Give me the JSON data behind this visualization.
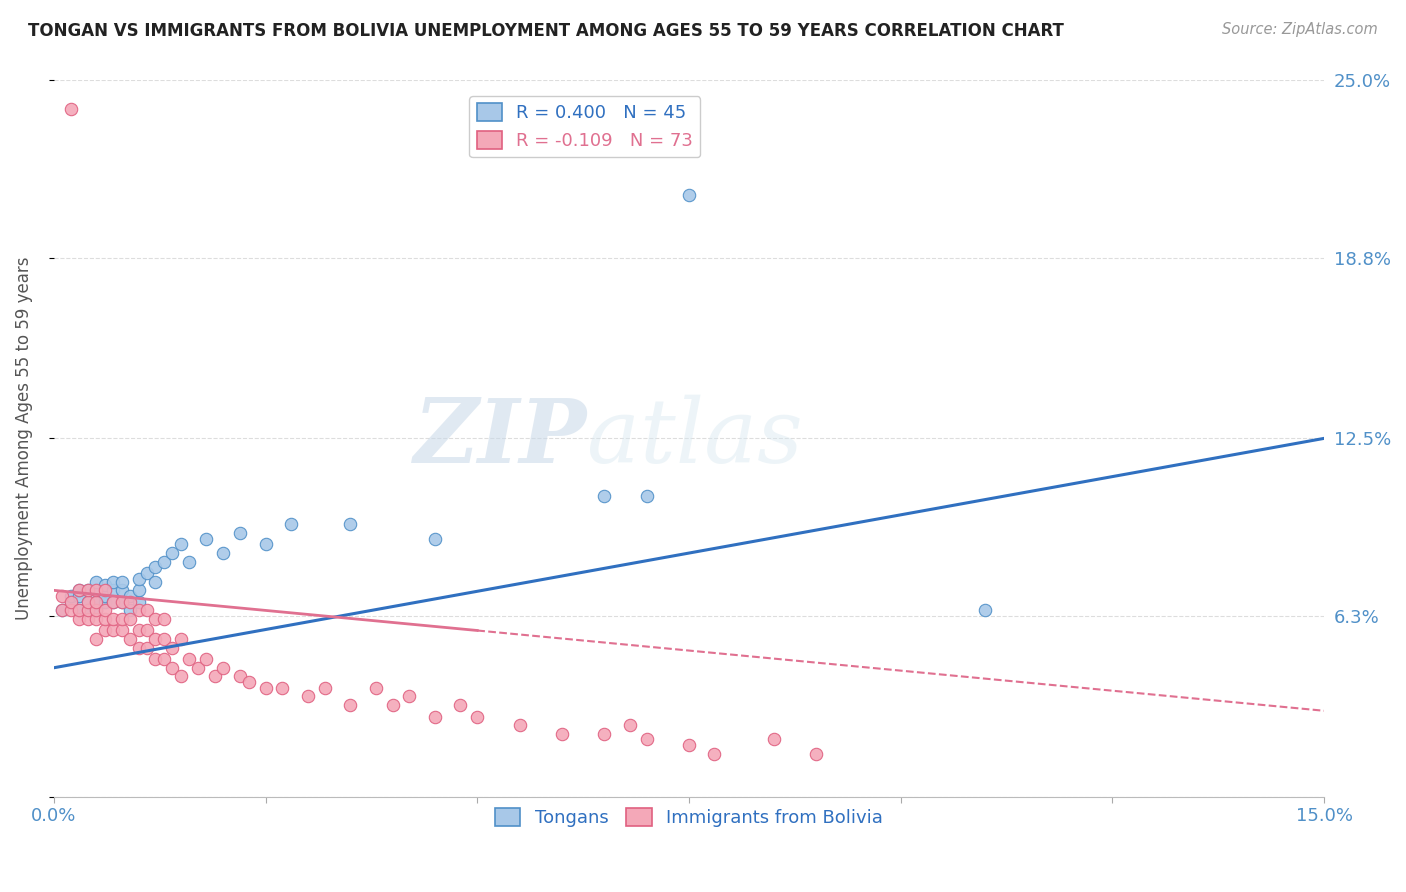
{
  "title": "TONGAN VS IMMIGRANTS FROM BOLIVIA UNEMPLOYMENT AMONG AGES 55 TO 59 YEARS CORRELATION CHART",
  "source": "Source: ZipAtlas.com",
  "ylabel": "Unemployment Among Ages 55 to 59 years",
  "xmin": 0.0,
  "xmax": 0.15,
  "ymin": 0.0,
  "ymax": 0.25,
  "yticks": [
    0.0,
    0.063,
    0.125,
    0.188,
    0.25
  ],
  "ytick_labels": [
    "",
    "6.3%",
    "12.5%",
    "18.8%",
    "25.0%"
  ],
  "watermark_zip": "ZIP",
  "watermark_atlas": "atlas",
  "blue_color": "#A8C8E8",
  "pink_color": "#F4A8B8",
  "blue_edge_color": "#5090C8",
  "pink_edge_color": "#E06080",
  "blue_line_color": "#3070C0",
  "pink_line_color": "#E07090",
  "legend_blue_label": "R = 0.400   N = 45",
  "legend_pink_label": "R = -0.109   N = 73",
  "legend_tongan": "Tongans",
  "legend_bolivia": "Immigrants from Bolivia",
  "blue_line_y0": 0.045,
  "blue_line_y1": 0.125,
  "pink_line_solid_x0": 0.0,
  "pink_line_solid_x1": 0.05,
  "pink_line_y0": 0.072,
  "pink_line_y1": 0.03,
  "blue_points_x": [
    0.001,
    0.002,
    0.002,
    0.003,
    0.003,
    0.003,
    0.004,
    0.004,
    0.004,
    0.005,
    0.005,
    0.005,
    0.005,
    0.006,
    0.006,
    0.006,
    0.007,
    0.007,
    0.007,
    0.008,
    0.008,
    0.008,
    0.009,
    0.009,
    0.01,
    0.01,
    0.01,
    0.011,
    0.012,
    0.012,
    0.013,
    0.014,
    0.015,
    0.016,
    0.018,
    0.02,
    0.022,
    0.025,
    0.028,
    0.035,
    0.045,
    0.065,
    0.07,
    0.075,
    0.11
  ],
  "blue_points_y": [
    0.065,
    0.068,
    0.07,
    0.065,
    0.07,
    0.072,
    0.065,
    0.068,
    0.072,
    0.065,
    0.068,
    0.072,
    0.075,
    0.068,
    0.07,
    0.074,
    0.068,
    0.072,
    0.075,
    0.068,
    0.072,
    0.075,
    0.065,
    0.07,
    0.068,
    0.072,
    0.076,
    0.078,
    0.075,
    0.08,
    0.082,
    0.085,
    0.088,
    0.082,
    0.09,
    0.085,
    0.092,
    0.088,
    0.095,
    0.095,
    0.09,
    0.105,
    0.105,
    0.21,
    0.065
  ],
  "pink_points_x": [
    0.001,
    0.001,
    0.002,
    0.002,
    0.003,
    0.003,
    0.003,
    0.004,
    0.004,
    0.004,
    0.004,
    0.005,
    0.005,
    0.005,
    0.005,
    0.005,
    0.006,
    0.006,
    0.006,
    0.006,
    0.007,
    0.007,
    0.007,
    0.008,
    0.008,
    0.008,
    0.009,
    0.009,
    0.009,
    0.01,
    0.01,
    0.01,
    0.011,
    0.011,
    0.011,
    0.012,
    0.012,
    0.012,
    0.013,
    0.013,
    0.013,
    0.014,
    0.014,
    0.015,
    0.015,
    0.016,
    0.017,
    0.018,
    0.019,
    0.02,
    0.022,
    0.023,
    0.025,
    0.027,
    0.03,
    0.032,
    0.035,
    0.038,
    0.04,
    0.042,
    0.045,
    0.048,
    0.05,
    0.055,
    0.06,
    0.065,
    0.068,
    0.07,
    0.075,
    0.078,
    0.085,
    0.09,
    0.002
  ],
  "pink_points_y": [
    0.065,
    0.07,
    0.065,
    0.068,
    0.062,
    0.065,
    0.072,
    0.062,
    0.065,
    0.068,
    0.072,
    0.055,
    0.062,
    0.065,
    0.068,
    0.072,
    0.058,
    0.062,
    0.065,
    0.072,
    0.058,
    0.062,
    0.068,
    0.058,
    0.062,
    0.068,
    0.055,
    0.062,
    0.068,
    0.052,
    0.058,
    0.065,
    0.052,
    0.058,
    0.065,
    0.048,
    0.055,
    0.062,
    0.048,
    0.055,
    0.062,
    0.045,
    0.052,
    0.042,
    0.055,
    0.048,
    0.045,
    0.048,
    0.042,
    0.045,
    0.042,
    0.04,
    0.038,
    0.038,
    0.035,
    0.038,
    0.032,
    0.038,
    0.032,
    0.035,
    0.028,
    0.032,
    0.028,
    0.025,
    0.022,
    0.022,
    0.025,
    0.02,
    0.018,
    0.015,
    0.02,
    0.015,
    0.24
  ]
}
